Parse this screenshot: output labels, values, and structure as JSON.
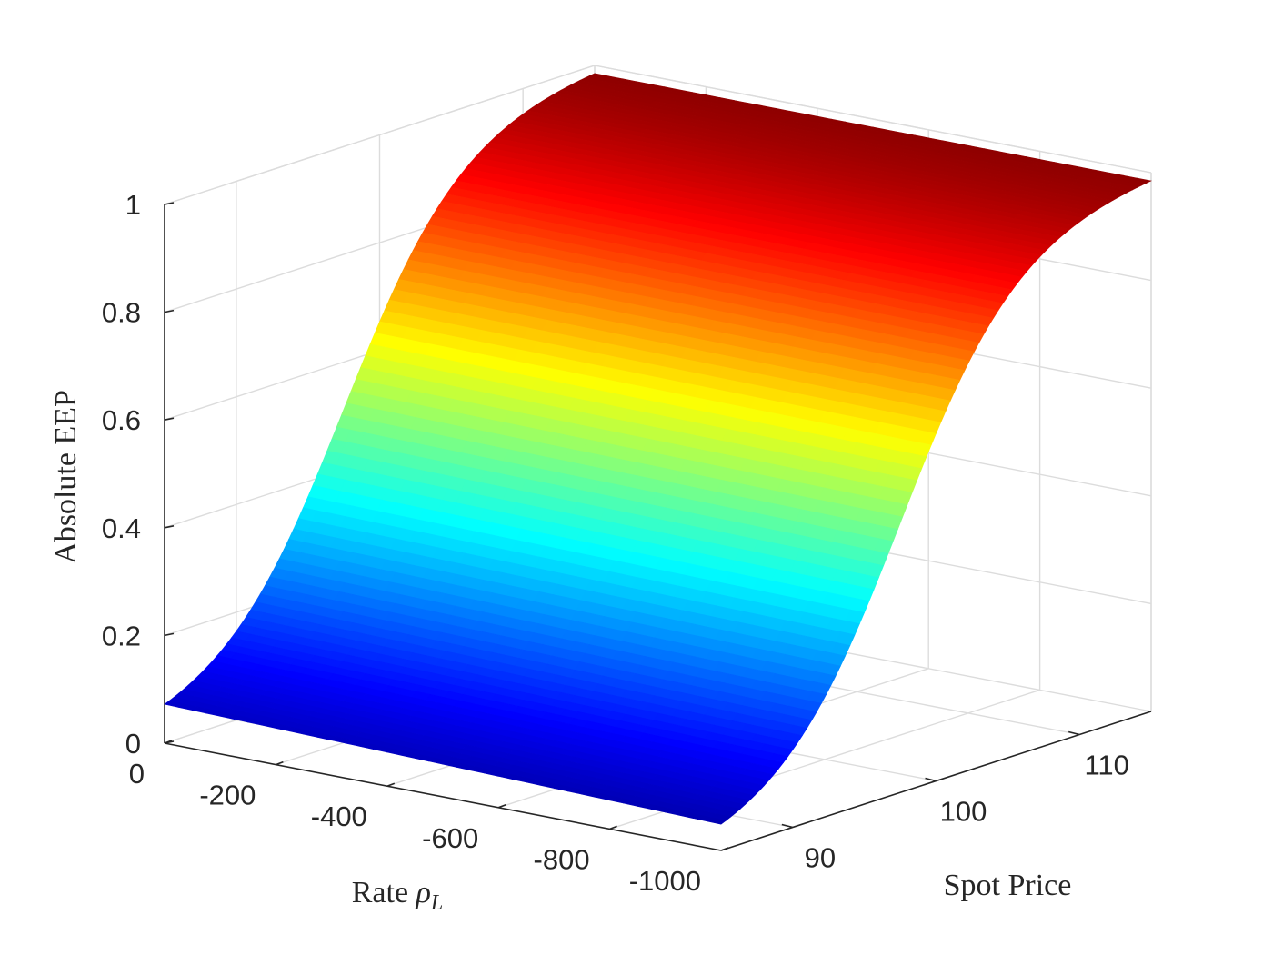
{
  "chart_data": {
    "type": "surface",
    "zlabel": "Absolute EEP",
    "xlabel_text": "Rate ",
    "xlabel_symbol": "ρ",
    "xlabel_subscript": "L",
    "ylabel": "Spot Price",
    "x_ticks": [
      "0",
      "-200",
      "-400",
      "-600",
      "-800",
      "-1000"
    ],
    "y_ticks": [
      "90",
      "100",
      "110"
    ],
    "z_ticks": [
      "0",
      "0.2",
      "0.4",
      "0.6",
      "0.8",
      "1"
    ],
    "x_range": [
      0,
      -1000
    ],
    "y_range": [
      85,
      115
    ],
    "z_range": [
      0,
      1
    ],
    "grid": true,
    "colormap": "jet",
    "colormap_stops": [
      "#00007f",
      "#0000ff",
      "#00ffff",
      "#ffff00",
      "#ff0000",
      "#7f0000"
    ],
    "surface": {
      "description_values": {
        "eep_at_rate_0_low_price": 0.02,
        "eep_at_rate_minus1000_low_price": 0.0,
        "eep_at_rate_minus1000_high_price": 1.0,
        "eep_at_rate_0_high_price": 1.0
      }
    }
  }
}
